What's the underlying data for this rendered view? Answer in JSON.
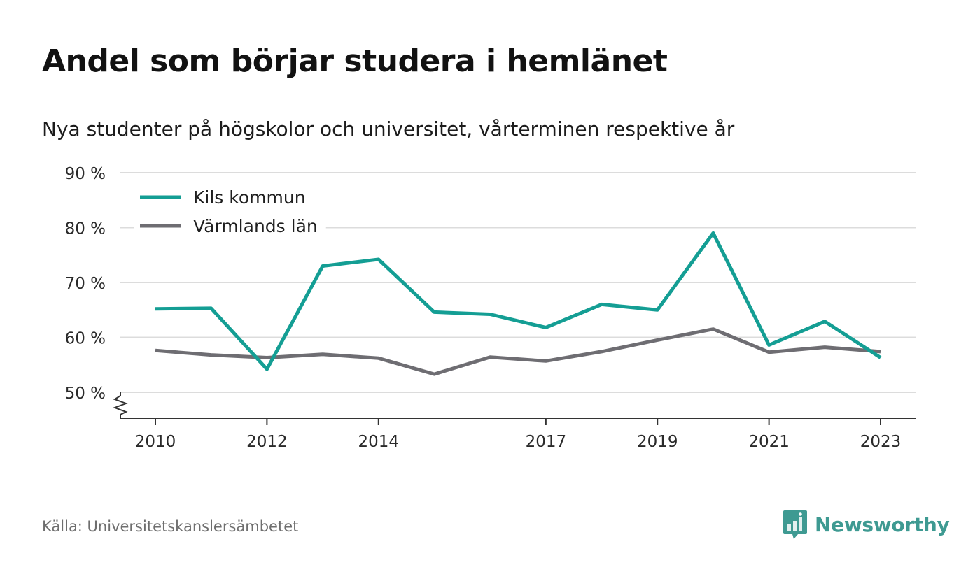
{
  "title": "Andel som börjar studera i hemlänet",
  "subtitle": "Nya studenter på högskolor och universitet, vårterminen respektive år",
  "source": "Källa: Universitetskanslersämbetet",
  "brand": "Newsworthy",
  "chart_data": {
    "type": "line",
    "x": [
      2010,
      2011,
      2012,
      2013,
      2014,
      2015,
      2016,
      2017,
      2018,
      2019,
      2020,
      2021,
      2022,
      2023
    ],
    "x_tick_labels": [
      "2010",
      "2012",
      "2014",
      "2017",
      "2019",
      "2021",
      "2023"
    ],
    "x_tick_values": [
      2010,
      2012,
      2014,
      2017,
      2019,
      2021,
      2023
    ],
    "y_tick_labels": [
      "50 %",
      "60 %",
      "70 %",
      "80 %",
      "90 %"
    ],
    "y_tick_values": [
      50,
      60,
      70,
      80,
      90
    ],
    "ylim": [
      50,
      90
    ],
    "grid": true,
    "legend_position": "top-left",
    "series": [
      {
        "name": "Kils kommun",
        "color": "#149e94",
        "values": [
          65.2,
          65.3,
          54.2,
          73.0,
          74.2,
          64.6,
          64.2,
          61.8,
          66.0,
          65.0,
          79.0,
          58.6,
          62.9,
          56.3
        ]
      },
      {
        "name": "Värmlands län",
        "color": "#6e6d72",
        "values": [
          57.6,
          56.8,
          56.3,
          56.9,
          56.2,
          53.3,
          56.4,
          55.7,
          57.4,
          59.5,
          61.5,
          57.3,
          58.2,
          57.4
        ]
      }
    ]
  }
}
